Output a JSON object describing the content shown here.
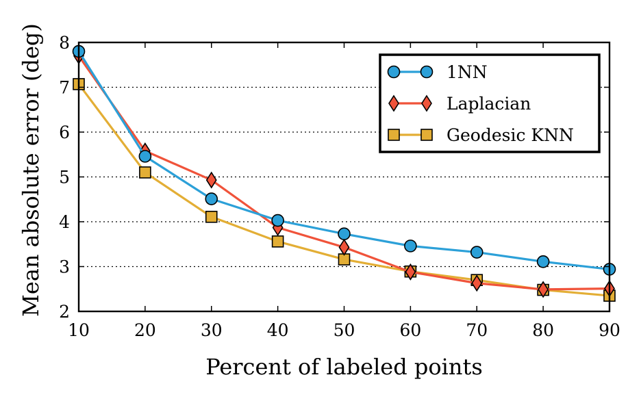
{
  "chart_data": {
    "type": "line",
    "xlabel": "Percent of labeled points",
    "ylabel": "Mean absolute error (deg)",
    "xlim": [
      10,
      90
    ],
    "ylim": [
      2,
      8
    ],
    "xticks": [
      10,
      20,
      30,
      40,
      50,
      60,
      70,
      80,
      90
    ],
    "yticks": [
      2,
      3,
      4,
      5,
      6,
      7,
      8
    ],
    "grid": "horizontal dotted",
    "legend_position": "top-right",
    "x": [
      10,
      20,
      30,
      40,
      50,
      60,
      70,
      80,
      90
    ],
    "series": [
      {
        "name": "1NN",
        "color": "#2ca0d8",
        "marker": "circle",
        "values": [
          7.8,
          5.46,
          4.51,
          4.03,
          3.73,
          3.46,
          3.32,
          3.11,
          2.94
        ]
      },
      {
        "name": "Laplacian",
        "color": "#f0533a",
        "marker": "diamond",
        "values": [
          7.7,
          5.58,
          4.93,
          3.87,
          3.43,
          2.88,
          2.63,
          2.49,
          2.51
        ]
      },
      {
        "name": "Geodesic KNN",
        "color": "#e3ae35",
        "marker": "square",
        "values": [
          7.07,
          5.1,
          4.11,
          3.56,
          3.16,
          2.89,
          2.7,
          2.48,
          2.35
        ]
      }
    ]
  }
}
